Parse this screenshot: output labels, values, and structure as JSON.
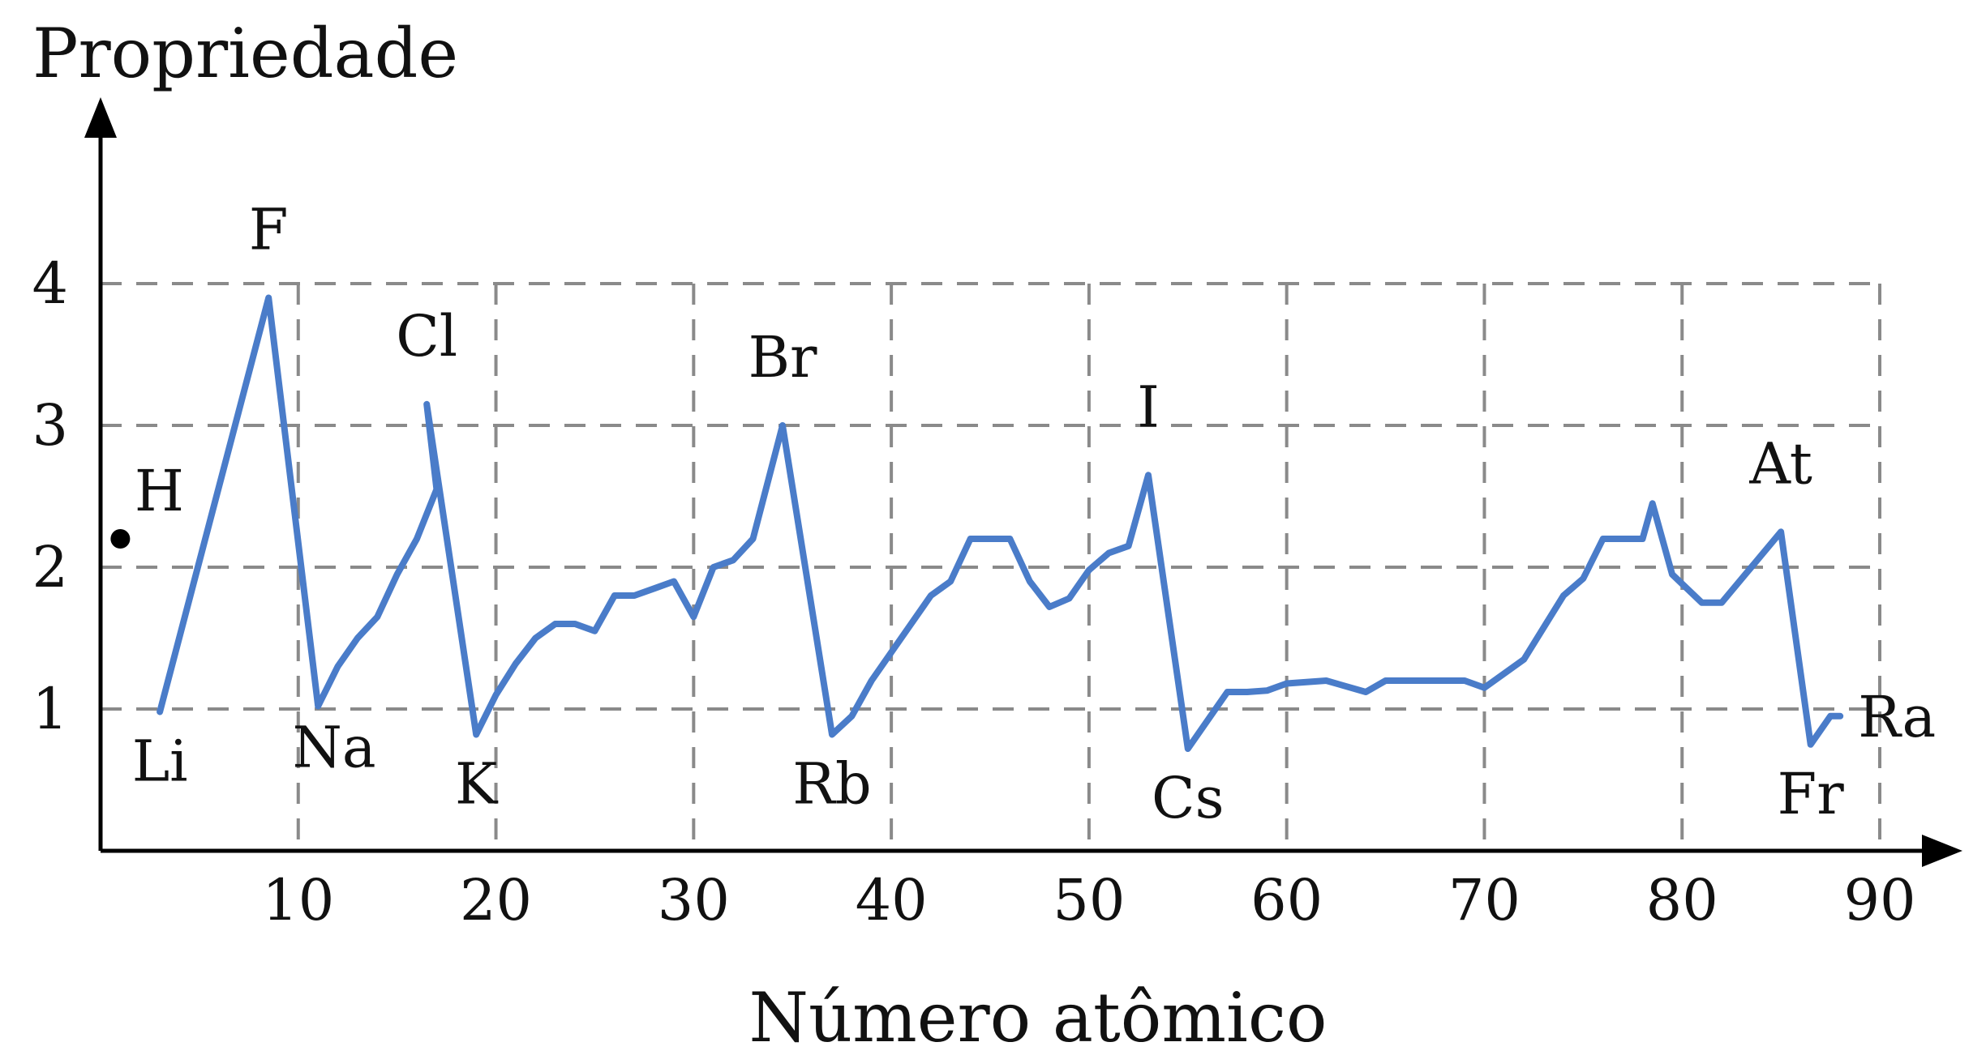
{
  "chart_data": {
    "type": "line",
    "title": "",
    "ylabel": "Propriedade",
    "xlabel": "Número atômico",
    "xlim": [
      0,
      90
    ],
    "ylim": [
      0,
      5
    ],
    "xticks": [
      10,
      20,
      30,
      40,
      50,
      60,
      70,
      80,
      90
    ],
    "yticks": [
      1,
      2,
      3,
      4
    ],
    "grid": true,
    "colors": {
      "line": "#4a7cc9",
      "axis": "#000000",
      "grid": "#8a8a8a"
    },
    "isolated_points": [
      {
        "x": 1,
        "y": 2.2,
        "label": "H"
      }
    ],
    "series": [
      {
        "color": "#4a7cc9",
        "points": [
          [
            3,
            0.98
          ],
          [
            4,
            1.57
          ],
          [
            5,
            2.04
          ],
          [
            6,
            2.55
          ],
          [
            7,
            3.04
          ],
          [
            8,
            3.44
          ],
          [
            9,
            3.98
          ],
          [
            11,
            0.93
          ],
          [
            12,
            1.31
          ],
          [
            13,
            1.61
          ],
          [
            14,
            1.9
          ],
          [
            15,
            2.19
          ],
          [
            16,
            2.58
          ],
          [
            17,
            3.16
          ],
          [
            19,
            0.82
          ],
          [
            20,
            1.0
          ],
          [
            21,
            1.36
          ],
          [
            22,
            1.54
          ],
          [
            23,
            1.63
          ],
          [
            24,
            1.66
          ],
          [
            25,
            1.55
          ],
          [
            26,
            1.83
          ],
          [
            27,
            1.88
          ],
          [
            28,
            1.91
          ],
          [
            29,
            1.9
          ],
          [
            30,
            1.65
          ],
          [
            31,
            1.81
          ],
          [
            32,
            2.01
          ],
          [
            33,
            2.18
          ],
          [
            34,
            2.55
          ],
          [
            35,
            2.96
          ],
          [
            37,
            0.82
          ],
          [
            38,
            0.95
          ],
          [
            39,
            1.22
          ],
          [
            40,
            1.33
          ],
          [
            41,
            1.6
          ],
          [
            42,
            2.16
          ],
          [
            43,
            1.9
          ],
          [
            44,
            2.2
          ],
          [
            45,
            2.28
          ],
          [
            46,
            2.2
          ],
          [
            47,
            1.93
          ],
          [
            48,
            1.69
          ],
          [
            49,
            1.78
          ],
          [
            50,
            1.96
          ],
          [
            51,
            2.05
          ],
          [
            52,
            2.1
          ],
          [
            53,
            2.66
          ],
          [
            55,
            0.79
          ],
          [
            56,
            0.89
          ],
          [
            57,
            1.1
          ],
          [
            58,
            1.12
          ],
          [
            59,
            1.13
          ],
          [
            60,
            1.14
          ],
          [
            62,
            1.17
          ],
          [
            64,
            1.2
          ],
          [
            65,
            1.22
          ],
          [
            66,
            1.23
          ],
          [
            67,
            1.24
          ],
          [
            68,
            1.24
          ],
          [
            69,
            1.25
          ],
          [
            71,
            1.27
          ],
          [
            72,
            1.3
          ],
          [
            73,
            1.5
          ],
          [
            74,
            2.36
          ],
          [
            75,
            1.9
          ],
          [
            76,
            2.2
          ],
          [
            77,
            2.2
          ],
          [
            78,
            2.28
          ],
          [
            79,
            2.54
          ],
          [
            80,
            2.0
          ],
          [
            81,
            1.62
          ],
          [
            82,
            2.33
          ],
          [
            83,
            2.02
          ],
          [
            84,
            2.0
          ],
          [
            85,
            2.2
          ],
          [
            87,
            0.7
          ],
          [
            88,
            0.9
          ]
        ],
        "display_points": [
          [
            3,
            0.98
          ],
          [
            8.5,
            3.9
          ],
          [
            11,
            1.02
          ],
          [
            12,
            1.3
          ],
          [
            13,
            1.5
          ],
          [
            14,
            1.65
          ],
          [
            15,
            1.95
          ],
          [
            16,
            2.2
          ],
          [
            17,
            2.55
          ],
          [
            16.5,
            3.15
          ],
          [
            19,
            0.82
          ],
          [
            20,
            1.1
          ],
          [
            21,
            1.32
          ],
          [
            22,
            1.5
          ],
          [
            23,
            1.6
          ],
          [
            24,
            1.6
          ],
          [
            25,
            1.55
          ],
          [
            26,
            1.8
          ],
          [
            27,
            1.8
          ],
          [
            28,
            1.85
          ],
          [
            29,
            1.9
          ],
          [
            30,
            1.65
          ],
          [
            31,
            2.0
          ],
          [
            32,
            2.05
          ],
          [
            33,
            2.2
          ],
          [
            34.5,
            3.0
          ],
          [
            37,
            0.82
          ],
          [
            38,
            0.95
          ],
          [
            39,
            1.2
          ],
          [
            40,
            1.4
          ],
          [
            41,
            1.6
          ],
          [
            42,
            1.8
          ],
          [
            43,
            1.9
          ],
          [
            44,
            2.2
          ],
          [
            45,
            2.2
          ],
          [
            46,
            2.2
          ],
          [
            47,
            1.9
          ],
          [
            48,
            1.72
          ],
          [
            49,
            1.78
          ],
          [
            50,
            1.98
          ],
          [
            51,
            2.1
          ],
          [
            52,
            2.15
          ],
          [
            53,
            2.65
          ],
          [
            55,
            0.72
          ],
          [
            57,
            1.12
          ],
          [
            58,
            1.12
          ],
          [
            59,
            1.13
          ],
          [
            60,
            1.18
          ],
          [
            62,
            1.2
          ],
          [
            64,
            1.12
          ],
          [
            65,
            1.2
          ],
          [
            66,
            1.2
          ],
          [
            67,
            1.2
          ],
          [
            68,
            1.2
          ],
          [
            69,
            1.2
          ],
          [
            70,
            1.15
          ],
          [
            72,
            1.35
          ],
          [
            74,
            1.8
          ],
          [
            75,
            1.92
          ],
          [
            76,
            2.2
          ],
          [
            77,
            2.2
          ],
          [
            78,
            2.2
          ],
          [
            78.5,
            2.45
          ],
          [
            79.5,
            1.95
          ],
          [
            81,
            1.75
          ],
          [
            82,
            1.75
          ],
          [
            85,
            2.25
          ],
          [
            86.5,
            0.75
          ],
          [
            87.5,
            0.95
          ],
          [
            88,
            0.95
          ]
        ]
      }
    ],
    "element_labels": [
      {
        "text": "H",
        "x": 1,
        "y": 2.2,
        "anchor": "upper-right"
      },
      {
        "text": "Li",
        "x": 3,
        "y": 0.98,
        "anchor": "below"
      },
      {
        "text": "F",
        "x": 8.5,
        "y": 3.9,
        "anchor": "above"
      },
      {
        "text": "Na",
        "x": 11,
        "y": 1.02,
        "anchor": "below-right"
      },
      {
        "text": "Cl",
        "x": 16.5,
        "y": 3.15,
        "anchor": "above"
      },
      {
        "text": "K",
        "x": 19,
        "y": 0.82,
        "anchor": "below"
      },
      {
        "text": "Br",
        "x": 34.5,
        "y": 3.0,
        "anchor": "above"
      },
      {
        "text": "Rb",
        "x": 37,
        "y": 0.82,
        "anchor": "below"
      },
      {
        "text": "I",
        "x": 53,
        "y": 2.65,
        "anchor": "above"
      },
      {
        "text": "Cs",
        "x": 55,
        "y": 0.72,
        "anchor": "below"
      },
      {
        "text": "At",
        "x": 85,
        "y": 2.25,
        "anchor": "above"
      },
      {
        "text": "Fr",
        "x": 86.5,
        "y": 0.75,
        "anchor": "below"
      },
      {
        "text": "Ra",
        "x": 88,
        "y": 0.95,
        "anchor": "right"
      }
    ]
  }
}
